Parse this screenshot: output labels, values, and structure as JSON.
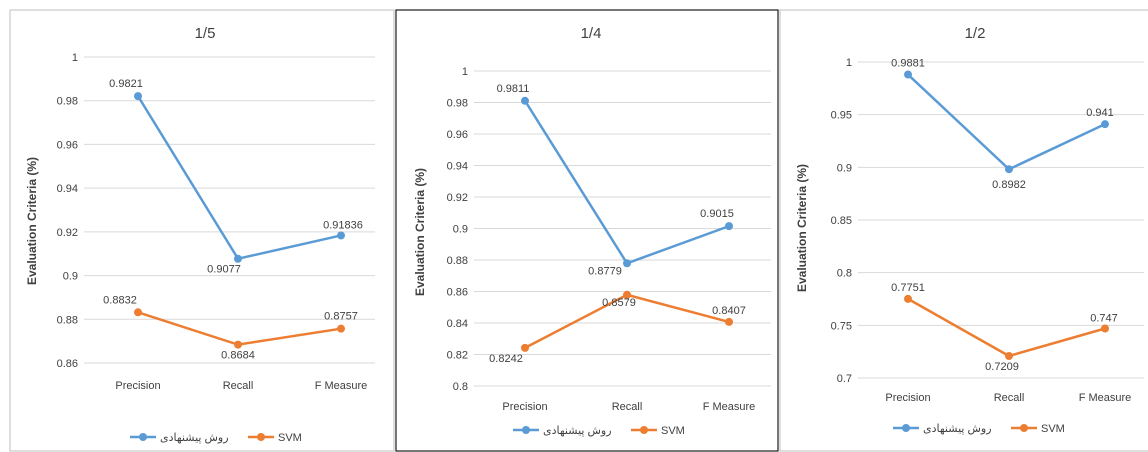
{
  "colors": {
    "proposed": "#5b9bd5",
    "svm": "#ed7d31"
  },
  "chart_data": [
    {
      "type": "line",
      "title": "1/5",
      "ylabel": "Evaluation Criteria (%)",
      "categories": [
        "Precision",
        "Recall",
        "F Measure"
      ],
      "ylim": [
        0.86,
        1
      ],
      "ytick_step": 0.02,
      "yticks": [
        "0.86",
        "0.88",
        "0.9",
        "0.92",
        "0.94",
        "0.96",
        "0.98",
        "1"
      ],
      "grid": true,
      "legend_position": "bottom",
      "series": [
        {
          "name": "روش پیشنهادی",
          "values": [
            0.9821,
            0.9077,
            0.91836
          ],
          "labels": [
            "0.9821",
            "0.9077",
            "0.91836"
          ]
        },
        {
          "name": "SVM",
          "values": [
            0.8832,
            0.8684,
            0.8757
          ],
          "labels": [
            "0.8832",
            "0.8684",
            "0.8757"
          ]
        }
      ]
    },
    {
      "type": "line",
      "title": "1/4",
      "ylabel": "Evaluation Criteria (%)",
      "categories": [
        "Precision",
        "Recall",
        "F Measure"
      ],
      "ylim": [
        0.8,
        1
      ],
      "ytick_step": 0.02,
      "yticks": [
        "0.8",
        "0.82",
        "0.84",
        "0.86",
        "0.88",
        "0.9",
        "0.92",
        "0.94",
        "0.96",
        "0.98",
        "1"
      ],
      "grid": true,
      "legend_position": "bottom",
      "series": [
        {
          "name": "روش پیشنهادی",
          "values": [
            0.9811,
            0.8779,
            0.9015
          ],
          "labels": [
            "0.9811",
            "0.8779",
            "0.9015"
          ]
        },
        {
          "name": "SVM",
          "values": [
            0.8242,
            0.8579,
            0.8407
          ],
          "labels": [
            "0.8242",
            "0.8579",
            "0.8407"
          ]
        }
      ]
    },
    {
      "type": "line",
      "title": "1/2",
      "ylabel": "Evaluation Criteria (%)",
      "categories": [
        "Precision",
        "Recall",
        "F Measure"
      ],
      "ylim": [
        0.7,
        1
      ],
      "ytick_step": 0.05,
      "yticks": [
        "0.7",
        "0.75",
        "0.8",
        "0.85",
        "0.9",
        "0.95",
        "1"
      ],
      "grid": true,
      "legend_position": "bottom",
      "series": [
        {
          "name": "روش پیشنهادی",
          "values": [
            0.9881,
            0.8982,
            0.941
          ],
          "labels": [
            "0.9881",
            "0.8982",
            "0.941"
          ]
        },
        {
          "name": "SVM",
          "values": [
            0.7751,
            0.7209,
            0.747
          ],
          "labels": [
            "0.7751",
            "0.7209",
            "0.747"
          ]
        }
      ]
    }
  ]
}
